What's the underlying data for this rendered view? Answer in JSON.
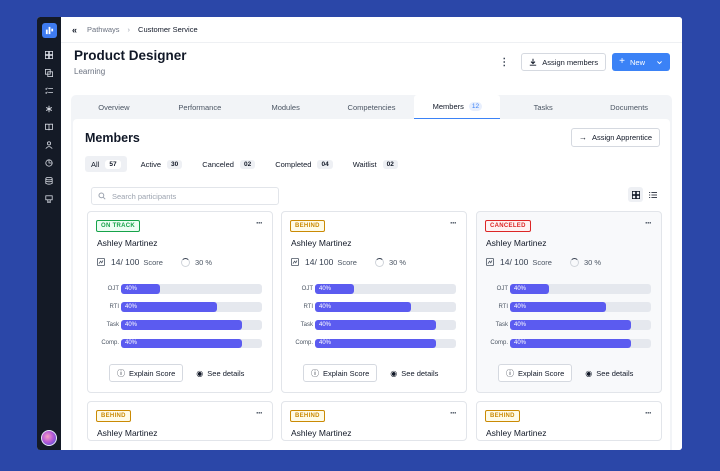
{
  "breadcrumb": [
    "Pathways",
    "Customer Service"
  ],
  "page": {
    "title": "Product Designer",
    "subtitle": "Learning"
  },
  "actions": {
    "assign_members": "Assign members",
    "new": "New"
  },
  "tabs": [
    {
      "label": "Overview"
    },
    {
      "label": "Performance"
    },
    {
      "label": "Modules"
    },
    {
      "label": "Competencies"
    },
    {
      "label": "Members",
      "count": "12",
      "active": true
    },
    {
      "label": "Tasks"
    },
    {
      "label": "Documents"
    }
  ],
  "members": {
    "title": "Members",
    "assign_apprentice": "Assign Apprentice",
    "filters": [
      {
        "label": "All",
        "count": "57",
        "active": true
      },
      {
        "label": "Active",
        "count": "30"
      },
      {
        "label": "Canceled",
        "count": "02"
      },
      {
        "label": "Completed",
        "count": "04"
      },
      {
        "label": "Waitlist",
        "count": "02"
      }
    ],
    "search_placeholder": "Search participants",
    "cards": [
      {
        "status": "ON TRACK",
        "status_kind": "ontrack",
        "name": "Ashley Martinez",
        "score": "14/ 100",
        "score_label": "Score",
        "pct": "30 %",
        "bars": [
          {
            "label": "OJT",
            "pct": 40,
            "text": "40%"
          },
          {
            "label": "RTI",
            "pct": 40,
            "text": "40%"
          },
          {
            "label": "Task",
            "pct": 40,
            "text": "40%"
          },
          {
            "label": "Comp.",
            "pct": 40,
            "text": "40%"
          }
        ]
      },
      {
        "status": "BEHIND",
        "status_kind": "behind",
        "name": "Ashley Martinez",
        "score": "14/ 100",
        "score_label": "Score",
        "pct": "30 %",
        "bars": [
          {
            "label": "OJT",
            "pct": 40,
            "text": "40%"
          },
          {
            "label": "RTI",
            "pct": 40,
            "text": "40%"
          },
          {
            "label": "Task",
            "pct": 40,
            "text": "40%"
          },
          {
            "label": "Comp.",
            "pct": 40,
            "text": "40%"
          }
        ]
      },
      {
        "status": "CANCELED",
        "status_kind": "canceled",
        "name": "Ashley Martinez",
        "score": "14/ 100",
        "score_label": "Score",
        "pct": "30 %",
        "bars": [
          {
            "label": "OJT",
            "pct": 40,
            "text": "40%"
          },
          {
            "label": "RTI",
            "pct": 40,
            "text": "40%"
          },
          {
            "label": "Task",
            "pct": 40,
            "text": "40%"
          },
          {
            "label": "Comp.",
            "pct": 40,
            "text": "40%"
          }
        ]
      },
      {
        "status": "BEHIND",
        "status_kind": "behind",
        "name": "Ashley Martinez"
      },
      {
        "status": "BEHIND",
        "status_kind": "behind",
        "name": "Ashley Martinez"
      },
      {
        "status": "BEHIND",
        "status_kind": "behind",
        "name": "Ashley Martinez"
      }
    ],
    "explain_score": "Explain Score",
    "see_details": "See details"
  },
  "colors": {
    "accent": "#3b82f6",
    "bar": "#5b5bf0",
    "sidebar": "#141a26",
    "background": "#2b47a8"
  },
  "icons": [
    "logo-icon",
    "grid-icon",
    "layers-icon",
    "checklist-icon",
    "asterisk-icon",
    "book-icon",
    "user-icon",
    "chart-icon",
    "database-icon",
    "award-icon"
  ]
}
